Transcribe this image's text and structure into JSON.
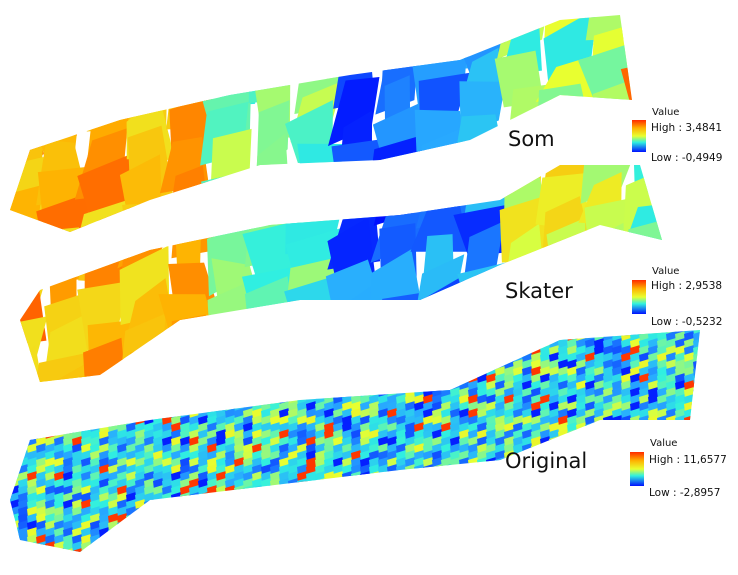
{
  "panels": [
    {
      "label": "Som",
      "legend": {
        "title": "Value",
        "high": "High : 3,4841",
        "low": "Low : -0,4949"
      }
    },
    {
      "label": "Skater",
      "legend": {
        "title": "Value",
        "high": "High : 2,9538",
        "low": "Low : -0,5232"
      }
    },
    {
      "label": "Original",
      "legend": {
        "title": "Value",
        "high": "High : 11,6577",
        "low": "Low : -2,8957"
      }
    }
  ]
}
